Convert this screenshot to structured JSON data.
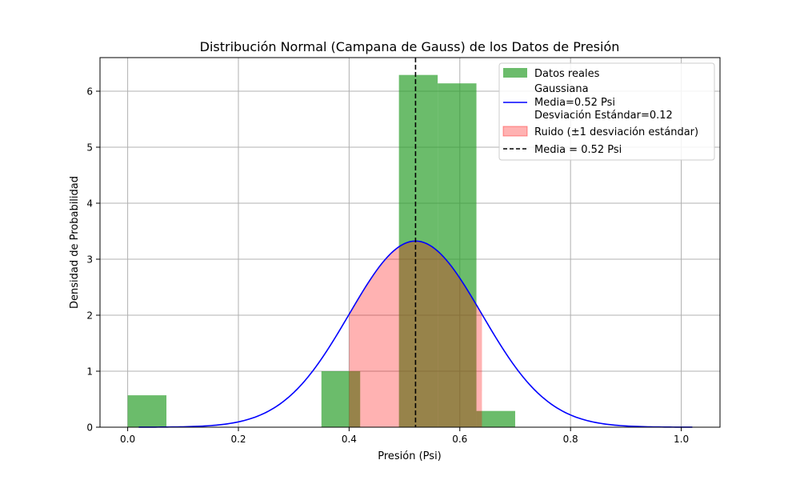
{
  "chart_data": {
    "type": "bar",
    "title": "Distribución Normal (Campana de Gauss) de los Datos de Presión",
    "xlabel": "Presión (Psi)",
    "ylabel": "Densidad de Probabilidad",
    "xlim": [
      -0.05,
      1.07
    ],
    "ylim": [
      0,
      6.6
    ],
    "xticks": [
      0.0,
      0.2,
      0.4,
      0.6,
      0.8,
      1.0
    ],
    "xtick_labels": [
      "0.0",
      "0.2",
      "0.4",
      "0.6",
      "0.8",
      "1.0"
    ],
    "yticks": [
      0,
      1,
      2,
      3,
      4,
      5,
      6
    ],
    "ytick_labels": [
      "0",
      "1",
      "2",
      "3",
      "4",
      "5",
      "6"
    ],
    "grid": true,
    "legend_position": "top-right",
    "histogram": {
      "name": "Datos reales",
      "color": "#2ca02c",
      "bins": [
        {
          "x0": 0.0,
          "x1": 0.07,
          "density": 0.57
        },
        {
          "x0": 0.07,
          "x1": 0.14,
          "density": 0
        },
        {
          "x0": 0.14,
          "x1": 0.21,
          "density": 0
        },
        {
          "x0": 0.21,
          "x1": 0.28,
          "density": 0
        },
        {
          "x0": 0.28,
          "x1": 0.35,
          "density": 0
        },
        {
          "x0": 0.35,
          "x1": 0.42,
          "density": 1.0
        },
        {
          "x0": 0.42,
          "x1": 0.49,
          "density": 0
        },
        {
          "x0": 0.49,
          "x1": 0.56,
          "density": 6.29
        },
        {
          "x0": 0.56,
          "x1": 0.63,
          "density": 6.14
        },
        {
          "x0": 0.63,
          "x1": 0.7,
          "density": 0.29
        }
      ]
    },
    "gaussian": {
      "label_lines": [
        "Gaussiana",
        "Media=0.52 Psi",
        "Desviación Estándar=0.12"
      ],
      "mean": 0.52,
      "std": 0.12,
      "x_range": [
        0.02,
        1.02
      ],
      "color": "#0000ff"
    },
    "noise_band": {
      "name": "Ruido (±1 desviación estándar)",
      "x_range": [
        0.4,
        0.64
      ],
      "color": "#ff0000"
    },
    "mean_line": {
      "name": "Media = 0.52 Psi",
      "x": 0.52,
      "color": "#000000"
    }
  }
}
